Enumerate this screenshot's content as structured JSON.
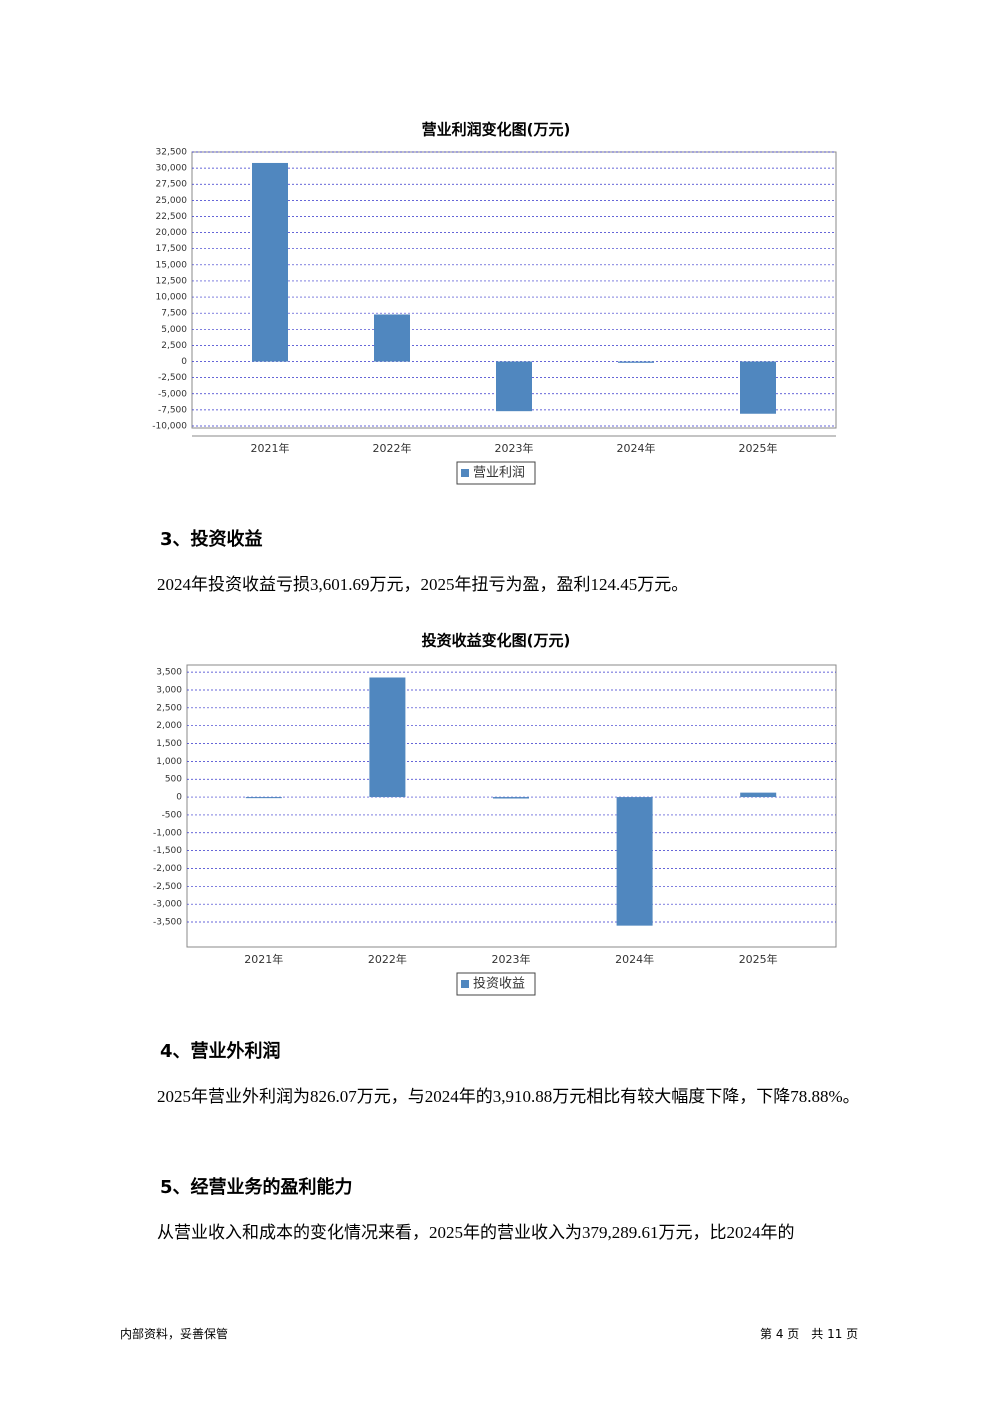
{
  "chart_data": [
    {
      "type": "bar",
      "title": "营业利润变化图(万元)",
      "categories": [
        "2021年",
        "2022年",
        "2023年",
        "2024年",
        "2025年"
      ],
      "series": [
        {
          "name": "营业利润",
          "color": "#5087bf",
          "values": [
            30800,
            7300,
            -7700,
            -200,
            -8100
          ]
        }
      ],
      "ylim": [
        -10000,
        32500
      ],
      "yticks": [
        {
          "value": -10000,
          "label": "-10,000"
        },
        {
          "value": -7500,
          "label": "-7,500"
        },
        {
          "value": -5000,
          "label": "-5,000"
        },
        {
          "value": -2500,
          "label": "-2,500"
        },
        0,
        {
          "value": 2500,
          "label": "2,500"
        },
        {
          "value": 5000,
          "label": "5,000"
        },
        {
          "value": 7500,
          "label": "7,500"
        },
        {
          "value": 10000,
          "label": "10,000"
        },
        {
          "value": 12500,
          "label": "12,500"
        },
        {
          "value": 15000,
          "label": "15,000"
        },
        {
          "value": 17500,
          "label": "17,500"
        },
        {
          "value": 20000,
          "label": "20,000"
        },
        {
          "value": 22500,
          "label": "22,500"
        },
        {
          "value": 25000,
          "label": "25,000"
        },
        {
          "value": 27500,
          "label": "27,500"
        },
        {
          "value": 30000,
          "label": "30,000"
        },
        {
          "value": 32500,
          "label": "32,500"
        }
      ],
      "grid": true,
      "legend": "bottom"
    },
    {
      "type": "bar",
      "title": "投资收益变化图(万元)",
      "categories": [
        "2021年",
        "2022年",
        "2023年",
        "2024年",
        "2025年"
      ],
      "series": [
        {
          "name": "投资收益",
          "color": "#5087bf",
          "values": [
            -30,
            3350,
            -40,
            -3601.69,
            124.45
          ]
        }
      ],
      "ylim": [
        -4200,
        3700
      ],
      "yticks": [
        {
          "value": -3500,
          "label": "-3,500"
        },
        {
          "value": -3000,
          "label": "-3,000"
        },
        {
          "value": -2500,
          "label": "-2,500"
        },
        {
          "value": -2000,
          "label": "-2,000"
        },
        {
          "value": -1500,
          "label": "-1,500"
        },
        {
          "value": -1000,
          "label": "-1,000"
        },
        -500,
        0,
        500,
        {
          "value": 1000,
          "label": "1,000"
        },
        {
          "value": 1500,
          "label": "1,500"
        },
        {
          "value": 2000,
          "label": "2,000"
        },
        {
          "value": 2500,
          "label": "2,500"
        },
        {
          "value": 3000,
          "label": "3,000"
        },
        {
          "value": 3500,
          "label": "3,500"
        }
      ],
      "grid": true,
      "legend": "bottom"
    }
  ],
  "sections": [
    {
      "heading": "3、投资收益",
      "paragraph": "2024年投资收益亏损3,601.69万元，2025年扭亏为盈，盈利124.45万元。"
    },
    {
      "heading": "4、营业外利润",
      "paragraph": "2025年营业外利润为826.07万元，与2024年的3,910.88万元相比有较大幅度下降，下降78.88%。"
    },
    {
      "heading": "5、经营业务的盈利能力",
      "paragraph": "从营业收入和成本的变化情况来看，2025年的营业收入为379,289.61万元，比2024年的"
    }
  ],
  "footer": {
    "left": "内部资料，妥善保管",
    "right": "第 4 页　共 11 页"
  }
}
